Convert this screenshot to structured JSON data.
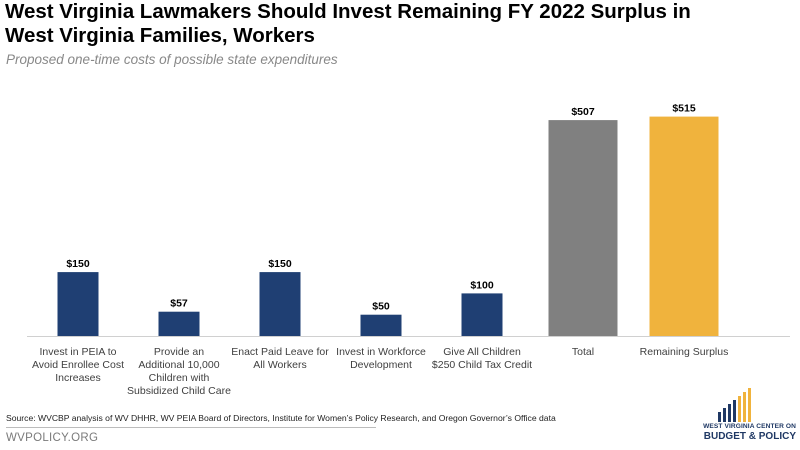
{
  "header": {
    "title": "West Virginia Lawmakers Should Invest Remaining FY 2022 Surplus in West Virginia Families, Workers",
    "subtitle": "Proposed one-time costs of possible state expenditures"
  },
  "chart_data": {
    "type": "bar",
    "title": "West Virginia Lawmakers Should Invest Remaining FY 2022 Surplus in West Virginia Families, Workers",
    "subtitle": "Proposed one-time costs of possible state expenditures",
    "categories": [
      [
        "Invest in PEIA to",
        "Avoid Enrollee Cost",
        "Increases"
      ],
      [
        "Provide an",
        "Additional 10,000",
        "Children with",
        "Subsidized Child Care"
      ],
      [
        "Enact Paid Leave for",
        "All Workers"
      ],
      [
        "Invest in Workforce",
        "Development"
      ],
      [
        "Give All Children",
        "$250 Child Tax Credit"
      ],
      [
        "Total"
      ],
      [
        "Remaining Surplus"
      ]
    ],
    "values": [
      150,
      57,
      150,
      50,
      100,
      507,
      515
    ],
    "data_labels": [
      "$150",
      "$57",
      "$150",
      "$50",
      "$100",
      "$507",
      "$515"
    ],
    "bar_colors": [
      "#1f3f73",
      "#1f3f73",
      "#1f3f73",
      "#1f3f73",
      "#1f3f73",
      "#808080",
      "#f0b33d"
    ],
    "ylim": [
      0,
      540
    ],
    "grid": false,
    "xlabel": "",
    "ylabel": ""
  },
  "footer": {
    "source": "Source: WVCBP analysis of WV DHHR,  WV PEIA Board of Directors, Institute for Women’s Policy Research, and Oregon Governor’s Office data",
    "url": "WVPOLICY.ORG"
  },
  "logo": {
    "line1": "WEST VIRGINIA CENTER ON",
    "line2": "BUDGET & POLICY"
  },
  "colors": {
    "primary_bar": "#1f3f73",
    "total_bar": "#808080",
    "surplus_bar": "#f0b33d",
    "subtitle": "#888888",
    "logo_blue": "#1f3864",
    "logo_gold": "#f0b33d"
  }
}
